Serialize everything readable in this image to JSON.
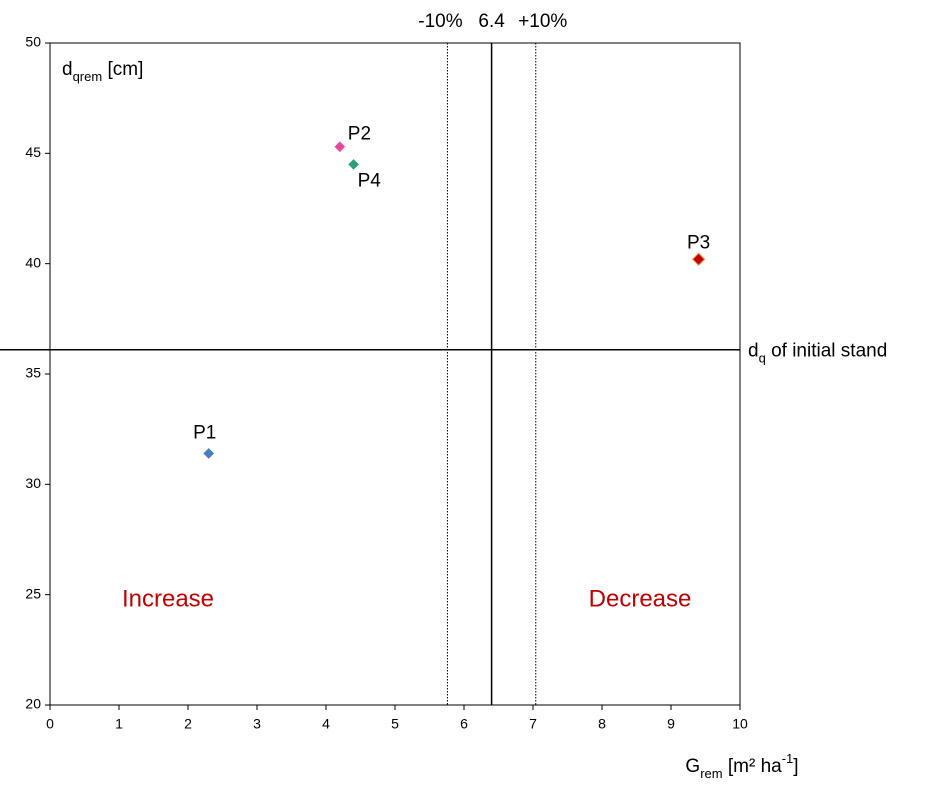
{
  "chart_data": {
    "type": "scatter",
    "x_label": [
      {
        "text": "G"
      },
      {
        "text": "rem",
        "sub": true
      },
      {
        "text": " [m² ha"
      },
      {
        "text": "-1",
        "sup": true
      },
      {
        "text": "]"
      }
    ],
    "y_label": [
      {
        "text": "d"
      },
      {
        "text": "qrem",
        "sub": true
      },
      {
        "text": " [cm]"
      }
    ],
    "xlim": [
      0,
      10
    ],
    "ylim": [
      20,
      50
    ],
    "xticks": [
      0,
      1,
      2,
      3,
      4,
      5,
      6,
      7,
      8,
      9,
      10
    ],
    "yticks": [
      20,
      25,
      30,
      35,
      40,
      45,
      50
    ],
    "grid": false,
    "series": [
      {
        "name": "P1",
        "color": "#4a7ebb",
        "x": [
          2.3
        ],
        "values": [
          31.4
        ]
      },
      {
        "name": "P2",
        "color": "#e8459e",
        "x": [
          4.2
        ],
        "values": [
          45.3
        ]
      },
      {
        "name": "P3",
        "color": "#c00000",
        "x": [
          9.4
        ],
        "values": [
          40.2
        ]
      },
      {
        "name": "P4",
        "color": "#2e9e7a",
        "x": [
          4.4
        ],
        "values": [
          44.5
        ]
      }
    ],
    "vlines": [
      {
        "value": 5.76,
        "label": "-10%",
        "style": "dotted"
      },
      {
        "value": 6.4,
        "label": "6.4",
        "style": "solid"
      },
      {
        "value": 7.04,
        "label": "+10%",
        "style": "dotted"
      }
    ],
    "hline": {
      "value": 36.1,
      "label": [
        {
          "text": "d"
        },
        {
          "text": "q",
          "sub": true
        },
        {
          "text": " of initial stand"
        }
      ]
    },
    "annotations": [
      {
        "text": "Increase",
        "color": "#c00000"
      },
      {
        "text": "Decrease",
        "color": "#c00000"
      }
    ]
  }
}
